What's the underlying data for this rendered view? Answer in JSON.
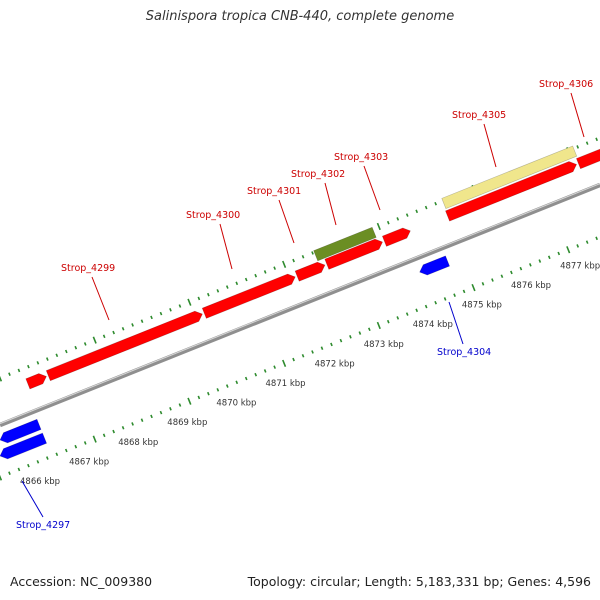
{
  "title": "Salinispora tropica CNB-440, complete genome",
  "footer": {
    "accession": "Accession: NC_009380",
    "summary": "Topology: circular; Length: 5,183,331 bp; Genes: 4,596"
  },
  "colors": {
    "forward_gene": "#ff0000",
    "reverse_gene": "#0000ff",
    "forward_label": "#cc0000",
    "reverse_label": "#0000cc",
    "green_feature": "#6b8e23",
    "pale_feature": "#f0e68c",
    "backbone": "#8f8f8f",
    "tick": "#2e8b2e"
  },
  "scale": {
    "unit": "kbp",
    "labels": [
      "4866 kbp",
      "4867 kbp",
      "4868 kbp",
      "4869 kbp",
      "4870 kbp",
      "4871 kbp",
      "4872 kbp",
      "4873 kbp",
      "4874 kbp",
      "4875 kbp",
      "4876 kbp",
      "4877 kbp"
    ]
  },
  "gene_labels": [
    {
      "name": "Strop_4297",
      "strand": "reverse"
    },
    {
      "name": "Strop_4299",
      "strand": "forward"
    },
    {
      "name": "Strop_4300",
      "strand": "forward"
    },
    {
      "name": "Strop_4301",
      "strand": "forward"
    },
    {
      "name": "Strop_4302",
      "strand": "forward"
    },
    {
      "name": "Strop_4303",
      "strand": "forward"
    },
    {
      "name": "Strop_4304",
      "strand": "reverse"
    },
    {
      "name": "Strop_4305",
      "strand": "forward"
    },
    {
      "name": "Strop_4306",
      "strand": "forward"
    }
  ]
}
